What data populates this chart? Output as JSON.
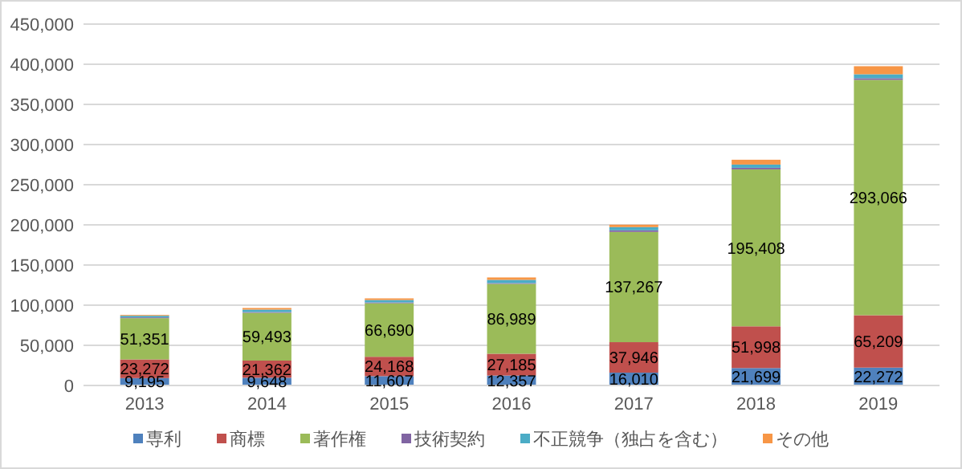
{
  "chart_data": {
    "type": "bar",
    "stacked": true,
    "categories": [
      "2013",
      "2014",
      "2015",
      "2016",
      "2017",
      "2018",
      "2019"
    ],
    "series": [
      {
        "name": "専利",
        "color": "#4f81bd",
        "values": [
          9195,
          9648,
          11607,
          12357,
          16010,
          21699,
          22272
        ],
        "value_labels": [
          "9,195",
          "9,648",
          "11,607",
          "12,357",
          "16,010",
          "21,699",
          "22,272"
        ]
      },
      {
        "name": "商標",
        "color": "#c0504d",
        "values": [
          23272,
          21362,
          24168,
          27185,
          37946,
          51998,
          65209
        ],
        "value_labels": [
          "23,272",
          "21,362",
          "24,168",
          "27,185",
          "37,946",
          "51,998",
          "65,209"
        ]
      },
      {
        "name": "著作権",
        "color": "#9bbb59",
        "values": [
          51351,
          59493,
          66690,
          86989,
          137267,
          195408,
          293066
        ],
        "value_labels": [
          "51,351",
          "59,493",
          "66,690",
          "86,989",
          "137,267",
          "195,408",
          "293,066"
        ]
      },
      {
        "name": "技術契約",
        "color": "#8064a2",
        "values": [
          1000,
          1000,
          1000,
          1000,
          2000,
          2000,
          2000
        ]
      },
      {
        "name": "不正競争（独占を含む）",
        "color": "#4bacc6",
        "values": [
          2000,
          3000,
          3000,
          4000,
          4000,
          4000,
          5000
        ]
      },
      {
        "name": "その他",
        "color": "#f79646",
        "values": [
          1000,
          2000,
          2000,
          3000,
          3000,
          6000,
          10000
        ]
      }
    ],
    "ylim": [
      0,
      450000
    ],
    "yticks": [
      0,
      {
        "value": 50000,
        "label": "50,000"
      },
      {
        "value": 100000,
        "label": "100,000"
      },
      {
        "value": 150000,
        "label": "150,000"
      },
      {
        "value": 200000,
        "label": "200,000"
      },
      {
        "value": 250000,
        "label": "250,000"
      },
      {
        "value": 300000,
        "label": "300,000"
      },
      {
        "value": 350000,
        "label": "350,000"
      },
      {
        "value": 400000,
        "label": "400,000"
      },
      {
        "value": 450000,
        "label": "450,000"
      }
    ],
    "grid": "y",
    "legend": "bottom"
  }
}
